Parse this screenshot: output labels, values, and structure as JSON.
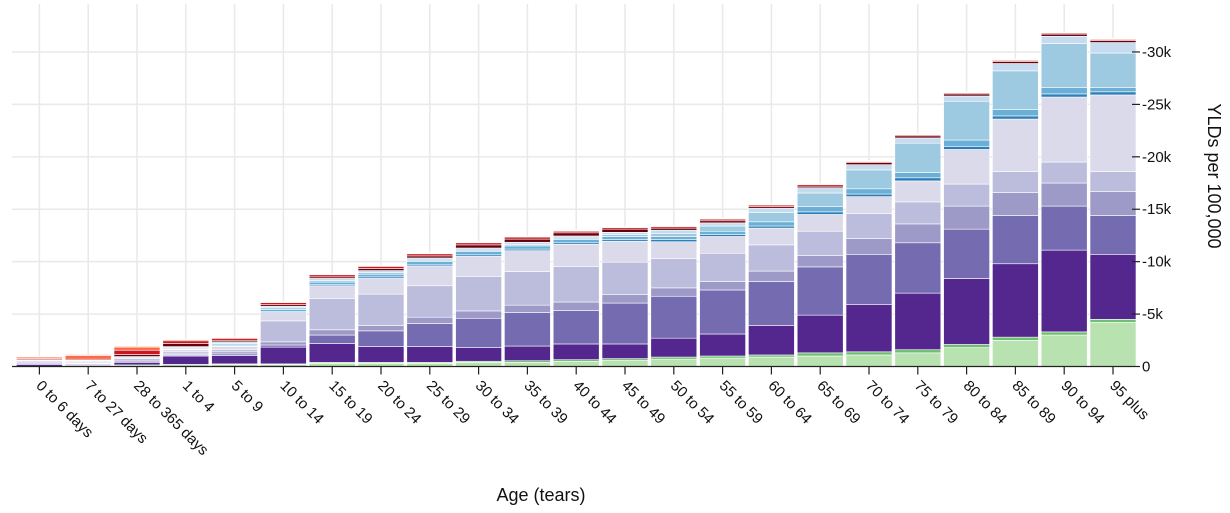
{
  "chart_data": {
    "type": "bar",
    "stacked": true,
    "xlabel": "Age (tears)",
    "ylabel": "YLDs per 100,000",
    "y_axis_position": "right",
    "ylim": [
      0,
      32500
    ],
    "grid": true,
    "yticks": [
      0,
      5000,
      10000,
      15000,
      20000,
      25000,
      30000
    ],
    "ytick_labels": [
      "0",
      "-5k",
      "-10k",
      "-15k",
      "-20k",
      "-25k",
      "-30k"
    ],
    "categories": [
      "0 to 6 days",
      "7 to 27 days",
      "28 to 365 days",
      "1 to 4",
      "5 to 9",
      "10 to 14",
      "15 to 19",
      "20 to 24",
      "25 to 29",
      "30 to 34",
      "35 to 39",
      "40 to 44",
      "45 to 49",
      "50 to 54",
      "55 to 59",
      "60 to 64",
      "65 to 69",
      "70 to 74",
      "75 to 79",
      "80 to 84",
      "85 to 89",
      "90 to 94",
      "95 plus"
    ],
    "series": [
      {
        "color": "#b8e2b0",
        "values": [
          0,
          100,
          150,
          200,
          200,
          200,
          300,
          300,
          300,
          400,
          400,
          500,
          600,
          700,
          800,
          900,
          1000,
          1100,
          1300,
          1800,
          2500,
          3000,
          4200
        ]
      },
      {
        "color": "#6fbf73",
        "values": [
          0,
          0,
          0,
          0,
          50,
          50,
          100,
          100,
          100,
          100,
          150,
          150,
          150,
          200,
          200,
          200,
          300,
          300,
          300,
          300,
          300,
          300,
          300
        ]
      },
      {
        "color": "#54278f",
        "values": [
          200,
          100,
          250,
          800,
          800,
          1600,
          1800,
          1500,
          1500,
          1300,
          1400,
          1500,
          1400,
          1800,
          2100,
          2800,
          3600,
          4500,
          5400,
          6300,
          7000,
          7800,
          6200
        ]
      },
      {
        "color": "#756bb1",
        "values": [
          100,
          50,
          100,
          100,
          150,
          200,
          800,
          1500,
          2200,
          2800,
          3200,
          3200,
          3900,
          4000,
          4200,
          4200,
          4600,
          4800,
          4800,
          4700,
          4600,
          4200,
          3700
        ]
      },
      {
        "color": "#9e9ac8",
        "values": [
          100,
          50,
          100,
          100,
          200,
          300,
          500,
          500,
          600,
          700,
          700,
          800,
          800,
          800,
          800,
          1000,
          1100,
          1500,
          1800,
          2200,
          2200,
          2200,
          2300
        ]
      },
      {
        "color": "#bcbddc",
        "values": [
          100,
          100,
          150,
          200,
          200,
          2000,
          3000,
          3000,
          3000,
          3300,
          3200,
          3400,
          3100,
          2800,
          2700,
          2500,
          2300,
          2400,
          2100,
          2100,
          2000,
          2000,
          1900
        ]
      },
      {
        "color": "#dadaeb",
        "values": [
          50,
          100,
          150,
          200,
          300,
          800,
          1200,
          1500,
          1900,
          1900,
          2000,
          2100,
          2000,
          1600,
          1600,
          1600,
          1600,
          1600,
          2000,
          3300,
          5000,
          6200,
          7300
        ]
      },
      {
        "color": "#2c7fb8",
        "values": [
          0,
          0,
          0,
          50,
          50,
          100,
          100,
          150,
          150,
          150,
          150,
          150,
          150,
          200,
          200,
          200,
          250,
          250,
          300,
          300,
          300,
          300,
          300
        ]
      },
      {
        "color": "#6baed6",
        "values": [
          0,
          0,
          0,
          50,
          100,
          200,
          250,
          250,
          250,
          300,
          300,
          300,
          300,
          300,
          300,
          400,
          500,
          500,
          500,
          600,
          600,
          600,
          400
        ]
      },
      {
        "color": "#9ecae1",
        "values": [
          0,
          0,
          0,
          100,
          150,
          150,
          150,
          150,
          150,
          150,
          150,
          150,
          200,
          300,
          500,
          900,
          1300,
          1800,
          2800,
          3700,
          3700,
          4200,
          3300
        ]
      },
      {
        "color": "#c6dbef",
        "values": [
          50,
          50,
          50,
          100,
          150,
          150,
          200,
          200,
          200,
          200,
          200,
          200,
          200,
          300,
          300,
          400,
          500,
          500,
          500,
          500,
          700,
          700,
          1000
        ]
      },
      {
        "color": "#67000d",
        "values": [
          50,
          50,
          200,
          300,
          150,
          150,
          150,
          200,
          200,
          300,
          300,
          300,
          300,
          200,
          200,
          150,
          150,
          200,
          200,
          200,
          200,
          200,
          200
        ]
      },
      {
        "color": "#cb181d",
        "values": [
          100,
          100,
          400,
          250,
          150,
          200,
          200,
          200,
          200,
          200,
          200,
          150,
          150,
          150,
          150,
          150,
          150,
          100,
          100,
          100,
          100,
          100,
          100
        ]
      },
      {
        "color": "#fb6a4a",
        "values": [
          150,
          350,
          300,
          100,
          100,
          50,
          50,
          50,
          50,
          50,
          50,
          50,
          50,
          50,
          50,
          50,
          50,
          50,
          50,
          50,
          50,
          50,
          50
        ]
      },
      {
        "color": "#fcbba1",
        "values": [
          50,
          100,
          100,
          50,
          50,
          50,
          50,
          50,
          50,
          50,
          50,
          50,
          50,
          50,
          50,
          50,
          50,
          50,
          50,
          50,
          50,
          50,
          50
        ]
      }
    ]
  }
}
